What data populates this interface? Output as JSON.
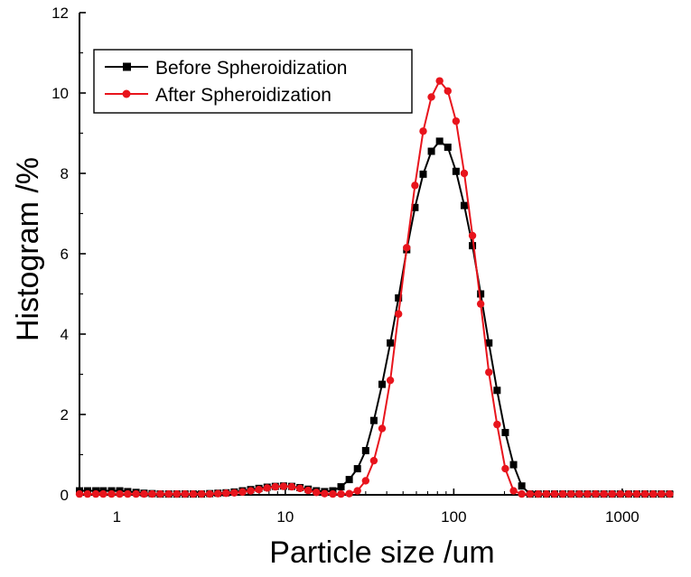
{
  "chart_data": {
    "type": "line",
    "xlabel": "Particle size /um",
    "ylabel": "Histogram /%",
    "x_scale": "log",
    "xlim": [
      0.6,
      2000
    ],
    "ylim": [
      0,
      12
    ],
    "x_ticks": [
      1,
      10,
      100,
      1000
    ],
    "y_ticks": [
      0,
      2,
      4,
      6,
      8,
      10,
      12
    ],
    "x_tick_labels": [
      "1",
      "10",
      "100",
      "1000"
    ],
    "y_tick_labels": [
      "0",
      "2",
      "4",
      "6",
      "8",
      "10",
      "12"
    ],
    "legend_position": "top-left",
    "grid": false,
    "series": [
      {
        "name": "Before Spheroidization",
        "color": "#000000",
        "marker": "square",
        "x": [
          0.6,
          0.67,
          0.75,
          0.83,
          0.93,
          1.04,
          1.16,
          1.3,
          1.45,
          1.62,
          1.81,
          2.03,
          2.27,
          2.54,
          2.84,
          3.18,
          3.56,
          3.98,
          4.45,
          4.98,
          5.57,
          6.23,
          6.97,
          7.8,
          8.72,
          9.76,
          10.92,
          12.22,
          13.67,
          15.29,
          17.11,
          19.14,
          21.41,
          23.96,
          26.8,
          29.99,
          33.55,
          37.54,
          42.0,
          46.99,
          52.58,
          58.83,
          65.82,
          73.64,
          82.39,
          92.18,
          103.14,
          115.4,
          129.11,
          144.45,
          161.62,
          180.83,
          202.32,
          226.36,
          253.27,
          283.37,
          317.04,
          354.72,
          396.87,
          444.04,
          496.81,
          555.85,
          621.9,
          695.81,
          778.5,
          871.02,
          974.53,
          1090.3,
          1219.9,
          1364.9,
          1527.1,
          1708.6,
          1911.6
        ],
        "y": [
          0.1,
          0.1,
          0.1,
          0.1,
          0.1,
          0.1,
          0.08,
          0.06,
          0.04,
          0.03,
          0.02,
          0.02,
          0.02,
          0.02,
          0.02,
          0.02,
          0.03,
          0.04,
          0.05,
          0.07,
          0.1,
          0.13,
          0.16,
          0.19,
          0.21,
          0.22,
          0.21,
          0.18,
          0.14,
          0.1,
          0.08,
          0.1,
          0.2,
          0.38,
          0.65,
          1.1,
          1.85,
          2.75,
          3.78,
          4.9,
          6.1,
          7.15,
          7.98,
          8.55,
          8.8,
          8.65,
          8.05,
          7.2,
          6.2,
          5.0,
          3.78,
          2.6,
          1.55,
          0.75,
          0.22,
          0.02,
          0.02,
          0.02,
          0.02,
          0.02,
          0.02,
          0.02,
          0.02,
          0.02,
          0.02,
          0.02,
          0.02,
          0.02,
          0.02,
          0.02,
          0.02,
          0.02,
          0.02
        ]
      },
      {
        "name": "After Spheroidization",
        "color": "#e8141c",
        "marker": "circle",
        "x": [
          0.6,
          0.67,
          0.75,
          0.83,
          0.93,
          1.04,
          1.16,
          1.3,
          1.45,
          1.62,
          1.81,
          2.03,
          2.27,
          2.54,
          2.84,
          3.18,
          3.56,
          3.98,
          4.45,
          4.98,
          5.57,
          6.23,
          6.97,
          7.8,
          8.72,
          9.76,
          10.92,
          12.22,
          13.67,
          15.29,
          17.11,
          19.14,
          21.41,
          23.96,
          26.8,
          29.99,
          33.55,
          37.54,
          42.0,
          46.99,
          52.58,
          58.83,
          65.82,
          73.64,
          82.39,
          92.18,
          103.14,
          115.4,
          129.11,
          144.45,
          161.62,
          180.83,
          202.32,
          226.36,
          253.27,
          283.37,
          317.04,
          354.72,
          396.87,
          444.04,
          496.81,
          555.85,
          621.9,
          695.81,
          778.5,
          871.02,
          974.53,
          1090.3,
          1219.9,
          1364.9,
          1527.1,
          1708.6,
          1911.6
        ],
        "y": [
          0.02,
          0.02,
          0.02,
          0.02,
          0.02,
          0.02,
          0.02,
          0.02,
          0.02,
          0.02,
          0.02,
          0.02,
          0.02,
          0.02,
          0.02,
          0.02,
          0.02,
          0.03,
          0.04,
          0.05,
          0.07,
          0.1,
          0.13,
          0.17,
          0.2,
          0.21,
          0.2,
          0.16,
          0.11,
          0.06,
          0.03,
          0.02,
          0.02,
          0.03,
          0.1,
          0.35,
          0.85,
          1.65,
          2.85,
          4.5,
          6.15,
          7.7,
          9.05,
          9.9,
          10.3,
          10.05,
          9.3,
          8.0,
          6.45,
          4.75,
          3.05,
          1.75,
          0.65,
          0.1,
          0.02,
          0.02,
          0.02,
          0.02,
          0.02,
          0.02,
          0.02,
          0.02,
          0.02,
          0.02,
          0.02,
          0.02,
          0.02,
          0.02,
          0.02,
          0.02,
          0.02,
          0.02,
          0.02
        ]
      }
    ]
  }
}
